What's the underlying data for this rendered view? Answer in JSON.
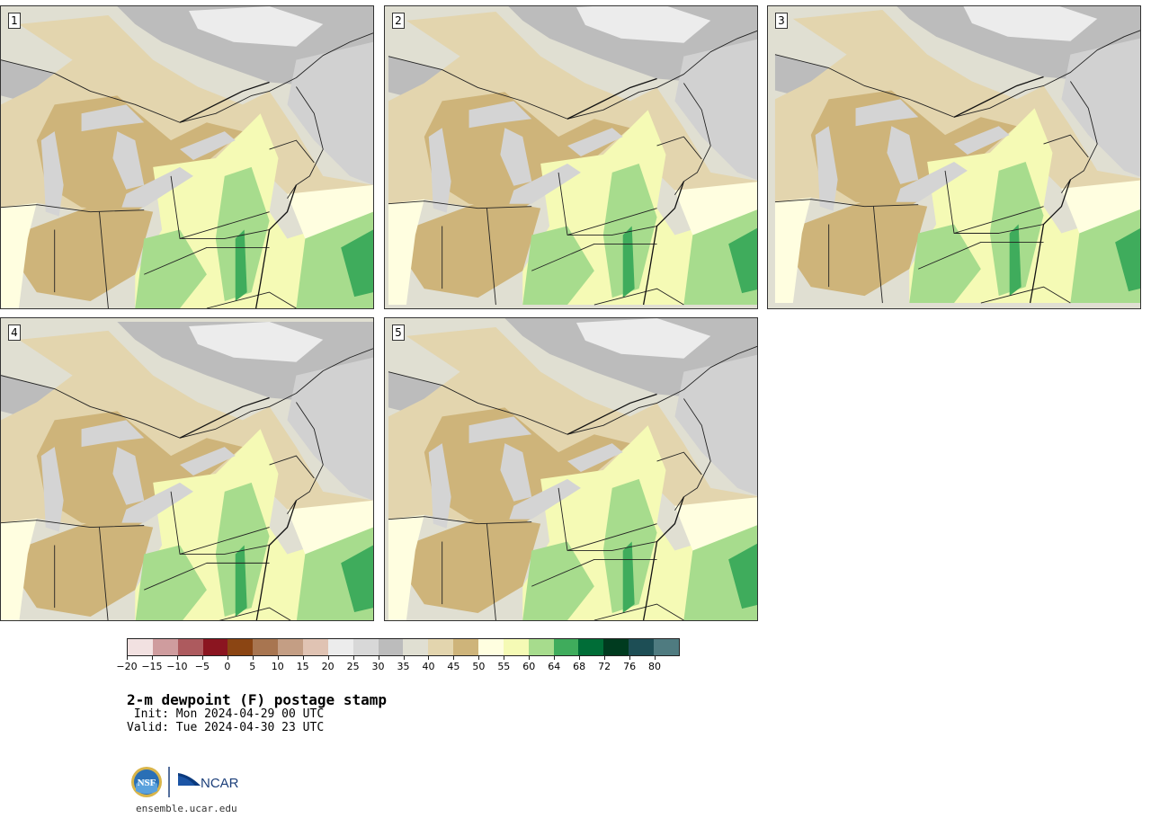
{
  "panels": [
    {
      "label": "1",
      "variant": 0
    },
    {
      "label": "2",
      "variant": 1
    },
    {
      "label": "3",
      "variant": 2
    },
    {
      "label": "4",
      "variant": 3
    },
    {
      "label": "5",
      "variant": 4
    }
  ],
  "colorbar": {
    "colors": [
      "#f2e1e1",
      "#cf9c9e",
      "#ad5a5e",
      "#8b1520",
      "#8b4513",
      "#a87550",
      "#c49e84",
      "#e0c3b3",
      "#ececec",
      "#d8d8d8",
      "#bcbcbc",
      "#e0dfd2",
      "#e3d5ae",
      "#ceb47a",
      "#fffee0",
      "#f5fab5",
      "#a7dc8d",
      "#3fac5c",
      "#006d37",
      "#003b1f",
      "#1d4e55",
      "#4f7b80"
    ],
    "tick_labels": [
      "−20",
      "−15",
      "−10",
      "−5",
      "0",
      "5",
      "10",
      "15",
      "20",
      "25",
      "30",
      "35",
      "40",
      "45",
      "50",
      "55",
      "60",
      "64",
      "68",
      "72",
      "76",
      "80"
    ]
  },
  "title": "2-m dewpoint (F) postage stamp",
  "init": " Init: Mon 2024-04-29 00 UTC",
  "valid": "Valid: Tue 2024-04-30 23 UTC",
  "logos": {
    "nsf": "NSF",
    "ncar": "NCAR"
  },
  "website": "ensemble.ucar.edu"
}
